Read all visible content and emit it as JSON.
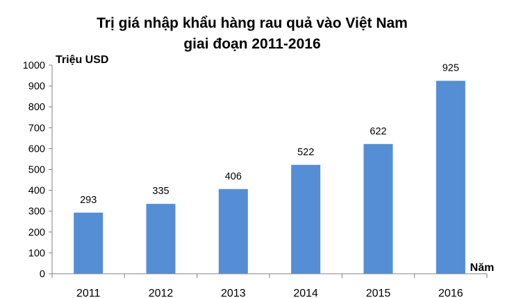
{
  "chart_data": {
    "type": "bar",
    "title_lines": [
      "Trị giá nhập khẩu hàng rau quả vào Việt Nam",
      "giai đoạn 2011-2016"
    ],
    "ylabel": "Triệu USD",
    "xlabel": "Năm",
    "categories": [
      "2011",
      "2012",
      "2013",
      "2014",
      "2015",
      "2016"
    ],
    "values": [
      293,
      335,
      406,
      522,
      622,
      925
    ],
    "ylim": [
      0,
      1000
    ],
    "yticks": [
      0,
      100,
      200,
      300,
      400,
      500,
      600,
      700,
      800,
      900,
      1000
    ],
    "grid": false,
    "legend": "none",
    "bar_color": "#558ed5"
  }
}
